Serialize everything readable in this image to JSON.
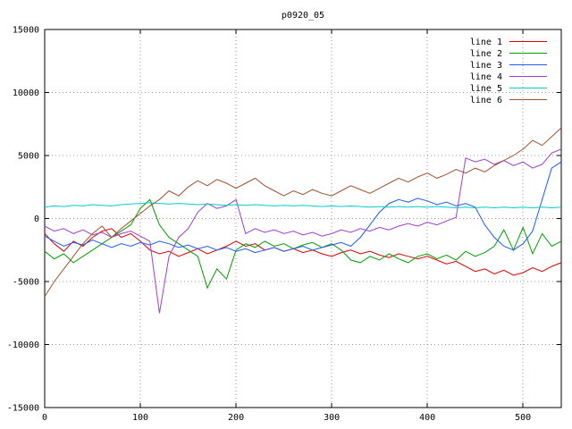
{
  "window": {
    "title": "p0920_05"
  },
  "chart_data": {
    "type": "line",
    "title": "p0920_05",
    "xlabel": "",
    "ylabel": "",
    "xlim": [
      0,
      540
    ],
    "ylim": [
      -15000,
      15000
    ],
    "x_ticks": [
      0,
      100,
      200,
      300,
      400,
      500
    ],
    "y_ticks": [
      -15000,
      -10000,
      -5000,
      0,
      5000,
      10000,
      15000
    ],
    "grid": "dotted",
    "legend_position": "top-right",
    "background_color": "#ffffff",
    "axis_color": "#000000",
    "grid_color": "#9a9a9a",
    "x_step": 10,
    "series": [
      {
        "name": "line 1",
        "color": "#e00000",
        "values": [
          -1200,
          -2000,
          -2600,
          -1800,
          -2200,
          -1500,
          -1000,
          -800,
          -1500,
          -1200,
          -1800,
          -2500,
          -2800,
          -2600,
          -3000,
          -2700,
          -2400,
          -2800,
          -2500,
          -2200,
          -1800,
          -2200,
          -2000,
          -2500,
          -2300,
          -2600,
          -2400,
          -2700,
          -2500,
          -2800,
          -3000,
          -2700,
          -2500,
          -2800,
          -2600,
          -2900,
          -3100,
          -2800,
          -3000,
          -3200,
          -3000,
          -3300,
          -3600,
          -3400,
          -3800,
          -4200,
          -4000,
          -4400,
          -4100,
          -4500,
          -4300,
          -3900,
          -4200,
          -3800,
          -3500
        ]
      },
      {
        "name": "line 2",
        "color": "#00a000",
        "values": [
          -2600,
          -3200,
          -2800,
          -3500,
          -3000,
          -2500,
          -2000,
          -1500,
          -1000,
          -500,
          800,
          1500,
          -500,
          -1500,
          -2000,
          -2500,
          -3000,
          -5500,
          -4000,
          -4800,
          -2500,
          -2000,
          -2300,
          -1800,
          -2200,
          -2000,
          -2400,
          -2100,
          -1900,
          -2300,
          -2000,
          -2500,
          -3300,
          -3500,
          -3000,
          -3300,
          -2800,
          -3200,
          -3500,
          -3000,
          -2800,
          -3200,
          -2900,
          -3300,
          -2600,
          -3000,
          -2700,
          -2200,
          -900,
          -2500,
          -700,
          -2800,
          -1200,
          -2200,
          -1800
        ]
      },
      {
        "name": "line 3",
        "color": "#1f5bff",
        "values": [
          -1400,
          -1800,
          -2200,
          -1900,
          -2100,
          -1700,
          -2000,
          -2300,
          -2000,
          -2200,
          -1900,
          -2100,
          -1800,
          -2000,
          -2300,
          -2100,
          -2400,
          -2200,
          -2500,
          -2300,
          -2600,
          -2400,
          -2700,
          -2500,
          -2300,
          -2600,
          -2400,
          -2200,
          -2500,
          -2300,
          -2100,
          -1900,
          -2200,
          -1500,
          -500,
          500,
          1200,
          1500,
          1300,
          1600,
          1400,
          1100,
          1300,
          1000,
          1200,
          900,
          -500,
          -1500,
          -2200,
          -2500,
          -2000,
          -1000,
          1500,
          4000,
          4500
        ]
      },
      {
        "name": "line 4",
        "color": "#9f3ed5",
        "values": [
          -600,
          -1000,
          -800,
          -1200,
          -900,
          -1300,
          -1100,
          -1500,
          -1200,
          -1000,
          -1400,
          -1800,
          -7500,
          -3000,
          -1500,
          -800,
          500,
          1200,
          800,
          1000,
          1500,
          -1200,
          -800,
          -1100,
          -900,
          -1200,
          -1000,
          -1300,
          -1100,
          -1400,
          -1200,
          -900,
          -1100,
          -800,
          -1000,
          -700,
          -900,
          -600,
          -400,
          -600,
          -300,
          -500,
          -200,
          100,
          4800,
          4500,
          4700,
          4300,
          4600,
          4200,
          4500,
          4000,
          4300,
          5200,
          5500
        ]
      },
      {
        "name": "line 5",
        "color": "#00cdcd",
        "values": [
          900,
          1000,
          950,
          1050,
          1000,
          1100,
          1050,
          1000,
          1100,
          1150,
          1200,
          1250,
          1200,
          1150,
          1200,
          1150,
          1100,
          1150,
          1100,
          1050,
          1100,
          1050,
          1100,
          1050,
          1000,
          1050,
          1000,
          1050,
          1000,
          950,
          1000,
          950,
          1000,
          950,
          900,
          950,
          900,
          950,
          900,
          950,
          900,
          950,
          900,
          850,
          900,
          850,
          900,
          850,
          900,
          850,
          900,
          850,
          900,
          850,
          900
        ]
      },
      {
        "name": "line 6",
        "color": "#a0522d",
        "values": [
          -6200,
          -5000,
          -4000,
          -3000,
          -2000,
          -1200,
          -600,
          -1500,
          -800,
          -200,
          400,
          1000,
          1500,
          2200,
          1800,
          2500,
          3000,
          2600,
          3100,
          2800,
          2400,
          2800,
          3200,
          2600,
          2200,
          1800,
          2200,
          1900,
          2300,
          2000,
          1800,
          2200,
          2600,
          2300,
          2000,
          2400,
          2800,
          3200,
          2900,
          3300,
          3600,
          3200,
          3500,
          3900,
          3600,
          4000,
          3700,
          4200,
          4600,
          5000,
          5500,
          6200,
          5800,
          6500,
          7200
        ]
      }
    ]
  }
}
